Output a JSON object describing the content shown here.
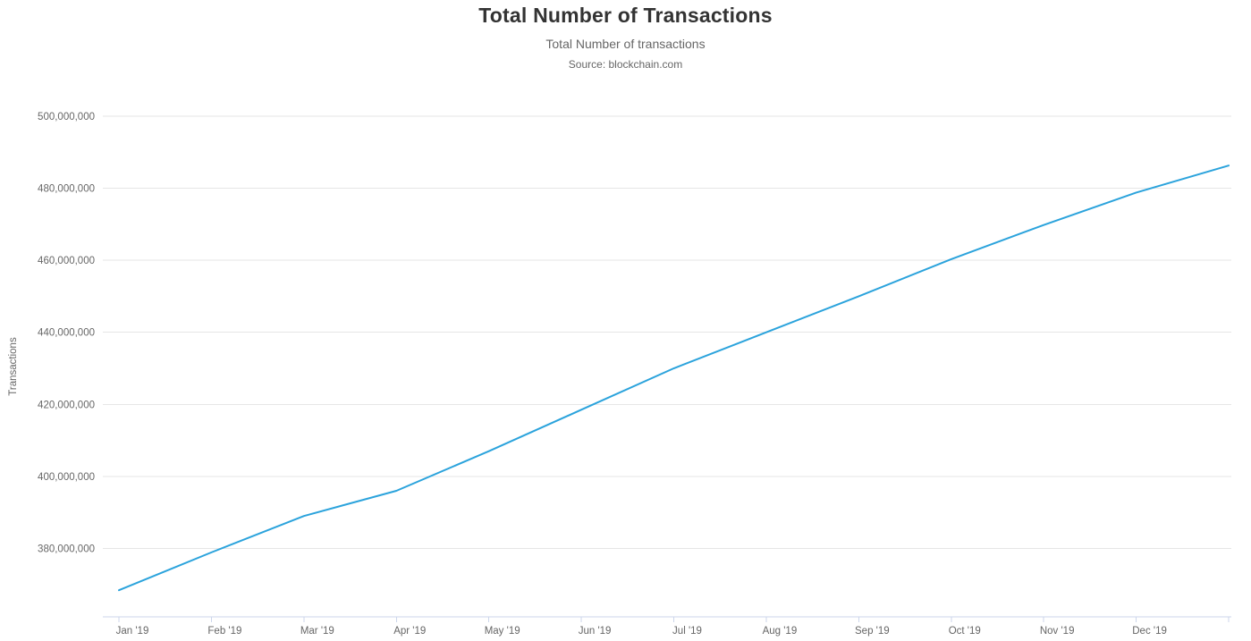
{
  "chart": {
    "title": "Total Number of Transactions",
    "subtitle": "Total Number of transactions",
    "source": "Source: blockchain.com",
    "y_axis_title": "Transactions"
  },
  "chart_data": {
    "type": "line",
    "title": "Total Number of Transactions",
    "subtitle": "Total Number of transactions",
    "source": "Source: blockchain.com",
    "xlabel": "",
    "ylabel": "Transactions",
    "x_labels": [
      "Jan '19",
      "Feb '19",
      "Mar '19",
      "Apr '19",
      "May '19",
      "Jun '19",
      "Jul '19",
      "Aug '19",
      "Sep '19",
      "Oct '19",
      "Nov '19",
      "Dec '19"
    ],
    "series": [
      {
        "name": "Total Number of transactions",
        "x": [
          0,
          1,
          2,
          3,
          4,
          5,
          6,
          7,
          8,
          9,
          10,
          11,
          12
        ],
        "values": [
          368400000,
          378900000,
          389000000,
          396000000,
          407000000,
          418500000,
          430000000,
          440000000,
          450000000,
          460300000,
          469800000,
          478800000,
          486300000
        ]
      }
    ],
    "ylim": [
      361000000,
      500000000
    ],
    "yticks": [
      380000000,
      400000000,
      420000000,
      440000000,
      460000000,
      480000000,
      500000000
    ],
    "grid": true,
    "legend": "none",
    "colors": {
      "line": "#2ba3dc",
      "grid": "#e6e6e6",
      "axis_line": "#ccd6eb",
      "tick": "#ccd6eb",
      "label": "#666666",
      "title": "#333333"
    }
  }
}
